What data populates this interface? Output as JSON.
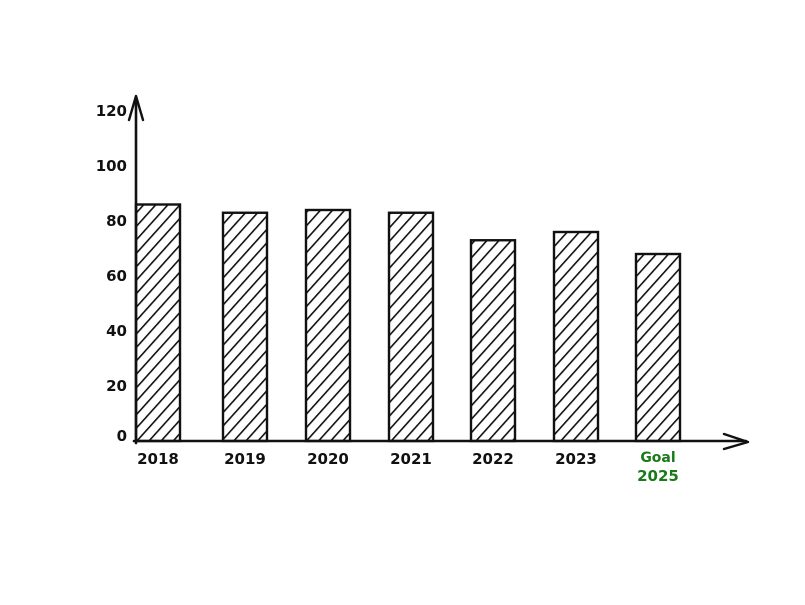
{
  "chart_data": {
    "type": "bar",
    "categories": [
      "2018",
      "2019",
      "2020",
      "2021",
      "2022",
      "2023",
      "Goal\n2025"
    ],
    "values": [
      86,
      83,
      84,
      83,
      73,
      76,
      68
    ],
    "ylim": [
      0,
      120
    ],
    "yticks": [
      0,
      20,
      40,
      60,
      80,
      100,
      120
    ],
    "title": "",
    "xlabel": "",
    "ylabel": "",
    "grid": false,
    "legend": "none",
    "style": "hand-drawn hatched bars",
    "colors": {
      "bar_stroke": "#111111",
      "bar_fill": "#ffffff",
      "axis": "#111111",
      "goal_label": "#1a7a1a"
    }
  }
}
